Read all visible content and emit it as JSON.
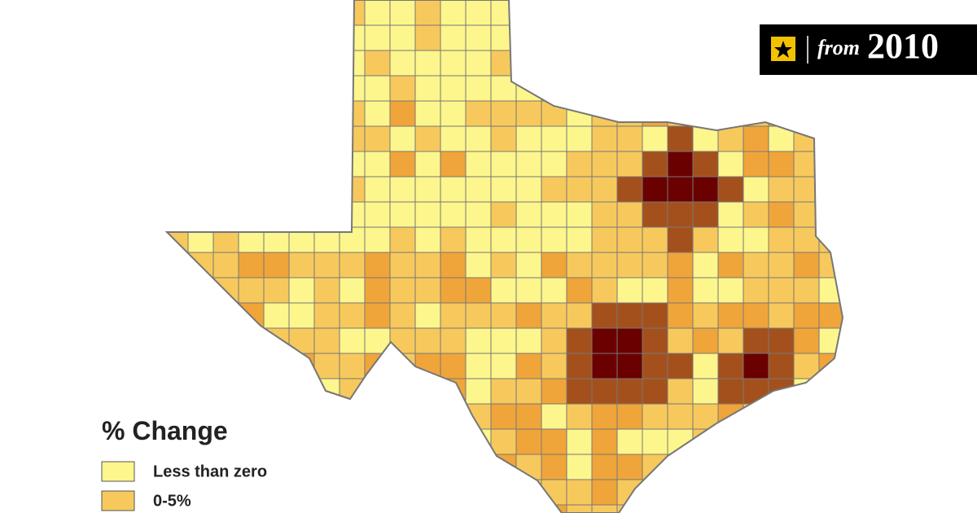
{
  "badge": {
    "prefix": "from",
    "year": "2010"
  },
  "legend": {
    "title": "% Change",
    "items": [
      {
        "label": "Less than zero",
        "color": "#fdf68c"
      },
      {
        "label": "0-5%",
        "color": "#f7c95c"
      }
    ]
  }
}
